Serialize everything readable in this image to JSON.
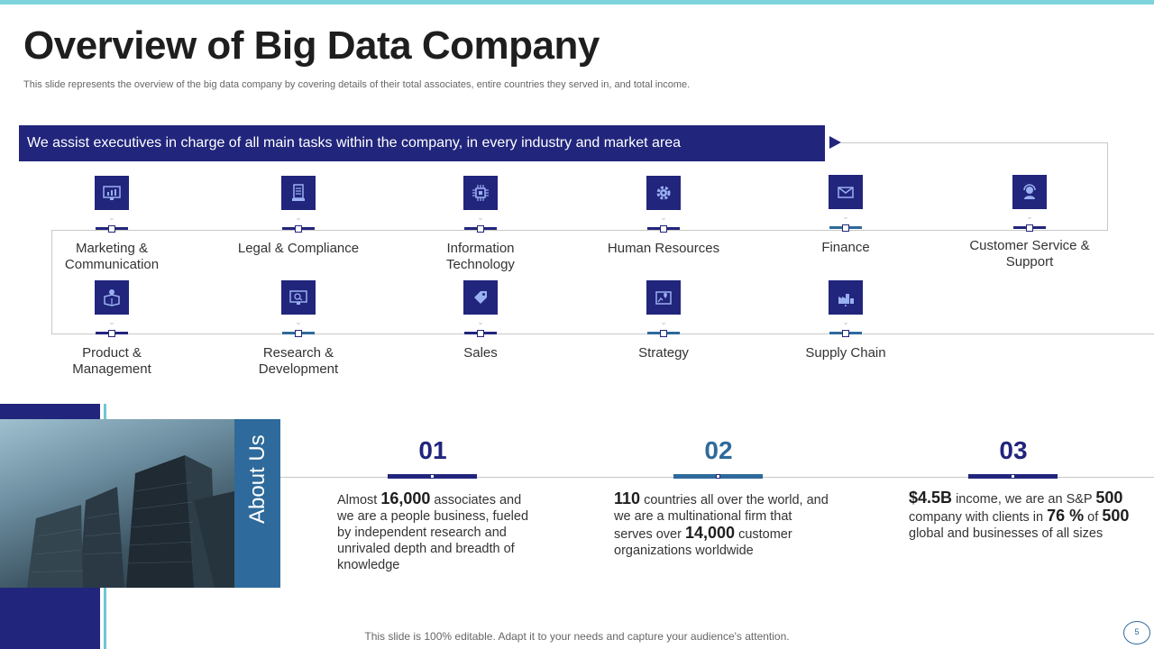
{
  "slide": {
    "title": "Overview of Big Data Company",
    "subtitle": "This slide represents the overview of the big data company by covering details of their total associates, entire countries they served in, and total income.",
    "banner": "We assist executives in charge of all main tasks within the company, in every industry and market area"
  },
  "departments_row1": [
    {
      "label_1": "Marketing &",
      "label_2": "Communication",
      "icon": "monitor-chart-icon"
    },
    {
      "label_1": "Legal & Compliance",
      "label_2": "",
      "icon": "document-icon"
    },
    {
      "label_1": "Information",
      "label_2": "Technology",
      "icon": "chip-icon"
    },
    {
      "label_1": "Human Resources",
      "label_2": "",
      "icon": "gear-icon"
    },
    {
      "label_1": "Finance",
      "label_2": "",
      "icon": "envelope-icon"
    },
    {
      "label_1": "Customer Service &",
      "label_2": "Support",
      "icon": "headset-icon"
    }
  ],
  "departments_row2": [
    {
      "label_1": "Product &",
      "label_2": "Management",
      "icon": "box-gear-icon"
    },
    {
      "label_1": "Research &",
      "label_2": "Development",
      "icon": "screen-search-icon"
    },
    {
      "label_1": "Sales",
      "label_2": "",
      "icon": "tag-icon"
    },
    {
      "label_1": "Strategy",
      "label_2": "",
      "icon": "map-pin-icon"
    },
    {
      "label_1": "Supply Chain",
      "label_2": "",
      "icon": "factory-icon"
    }
  ],
  "about": {
    "heading": "About Us",
    "stats": [
      {
        "number": "01",
        "pre": "Almost ",
        "b1": "16,000",
        "t1": " associates and we are a people business, fueled by independent research and unrivaled depth and breadth of knowledge"
      },
      {
        "number": "02",
        "b1": "110",
        "t1": " countries all over the world, and we are a multinational firm that serves over ",
        "b2": "14,000",
        "t2": " customer organizations worldwide"
      },
      {
        "number": "03",
        "b1": "$4.5B",
        "t1": " income, we are an S&P ",
        "b2": "500",
        "t2": " company with clients in ",
        "b3": "76 %",
        "t3": " of ",
        "b4": "500",
        "t4": " global and businesses of all sizes"
      }
    ]
  },
  "footer": "This slide is 100% editable. Adapt it to your needs and capture your audience's attention.",
  "page_number": "5",
  "colors": {
    "navy": "#21257c",
    "steel": "#2e6a9b",
    "teal": "#6cc8d2"
  }
}
